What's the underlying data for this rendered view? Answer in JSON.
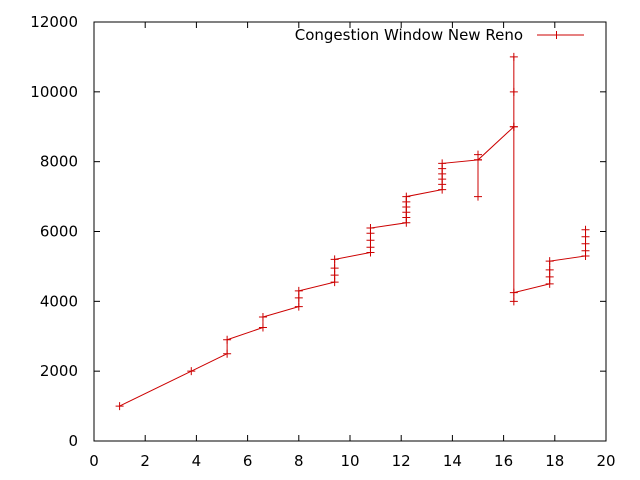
{
  "chart_data": {
    "type": "line",
    "title": "",
    "xlabel": "",
    "ylabel": "",
    "xlim": [
      0,
      20
    ],
    "ylim": [
      0,
      12000
    ],
    "x_ticks": [
      "0",
      "2",
      "4",
      "6",
      "8",
      "10",
      "12",
      "14",
      "16",
      "18",
      "20"
    ],
    "y_ticks": [
      "0",
      "2000",
      "4000",
      "6000",
      "8000",
      "10000",
      "12000"
    ],
    "grid": false,
    "legend_position": "top-right",
    "series": [
      {
        "name": "Congestion Window New Reno",
        "color": "#cc0000",
        "marker": "plus",
        "points": [
          [
            1.0,
            1000
          ],
          [
            3.8,
            2000
          ],
          [
            5.2,
            2500
          ],
          [
            5.2,
            2900
          ],
          [
            6.6,
            3250
          ],
          [
            6.6,
            3550
          ],
          [
            8.0,
            3850
          ],
          [
            8.0,
            4100
          ],
          [
            8.0,
            4300
          ],
          [
            9.4,
            4550
          ],
          [
            9.4,
            4750
          ],
          [
            9.4,
            4950
          ],
          [
            9.4,
            5200
          ],
          [
            10.8,
            5400
          ],
          [
            10.8,
            5550
          ],
          [
            10.8,
            5750
          ],
          [
            10.8,
            5950
          ],
          [
            10.8,
            6100
          ],
          [
            12.2,
            6250
          ],
          [
            12.2,
            6400
          ],
          [
            12.2,
            6550
          ],
          [
            12.2,
            6700
          ],
          [
            12.2,
            6850
          ],
          [
            12.2,
            7000
          ],
          [
            13.6,
            7200
          ],
          [
            13.6,
            7350
          ],
          [
            13.6,
            7500
          ],
          [
            13.6,
            7650
          ],
          [
            13.6,
            7800
          ],
          [
            13.6,
            7950
          ],
          [
            15.0,
            8050
          ],
          [
            15.0,
            7000
          ],
          [
            15.0,
            8050
          ],
          [
            15.0,
            8200
          ],
          [
            15.0,
            8050
          ],
          [
            16.4,
            9000
          ],
          [
            16.4,
            10000
          ],
          [
            16.4,
            11000
          ],
          [
            16.4,
            9000
          ],
          [
            16.4,
            4000
          ],
          [
            16.4,
            4250
          ],
          [
            17.8,
            4500
          ],
          [
            17.8,
            4700
          ],
          [
            17.8,
            4900
          ],
          [
            17.8,
            5150
          ],
          [
            19.2,
            5300
          ],
          [
            19.2,
            5450
          ],
          [
            19.2,
            5650
          ],
          [
            19.2,
            5850
          ],
          [
            19.2,
            6050
          ]
        ]
      }
    ]
  }
}
